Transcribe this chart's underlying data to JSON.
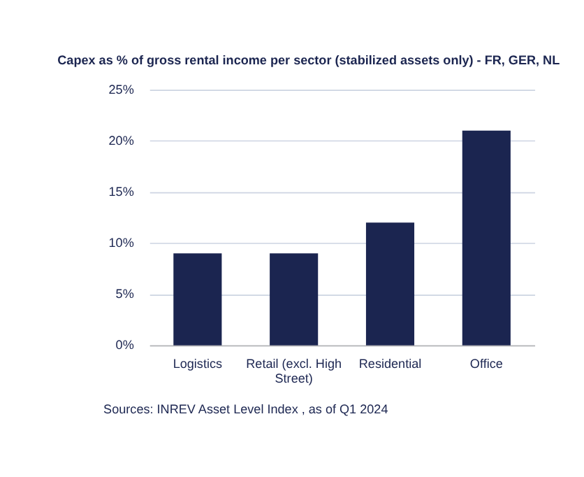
{
  "chart_data": {
    "type": "bar",
    "title": "Capex as % of gross rental income per sector (stabilized assets only) - FR, GER, NL",
    "categories": [
      "Logistics",
      "Retail (excl. High Street)",
      "Residential",
      "Office"
    ],
    "values": [
      9,
      9,
      12,
      21
    ],
    "color": "#1b2550",
    "ylim": [
      0,
      25
    ],
    "yticks": [
      {
        "value": 0,
        "label": "0%"
      },
      {
        "value": 5,
        "label": "5%"
      },
      {
        "value": 10,
        "label": "10%"
      },
      {
        "value": 15,
        "label": "15%"
      },
      {
        "value": 20,
        "label": "20%"
      },
      {
        "value": 25,
        "label": "25%"
      }
    ],
    "grid": "y",
    "annotations": [
      "Sources: INREV Asset Level Index , as of Q1 2024"
    ]
  }
}
